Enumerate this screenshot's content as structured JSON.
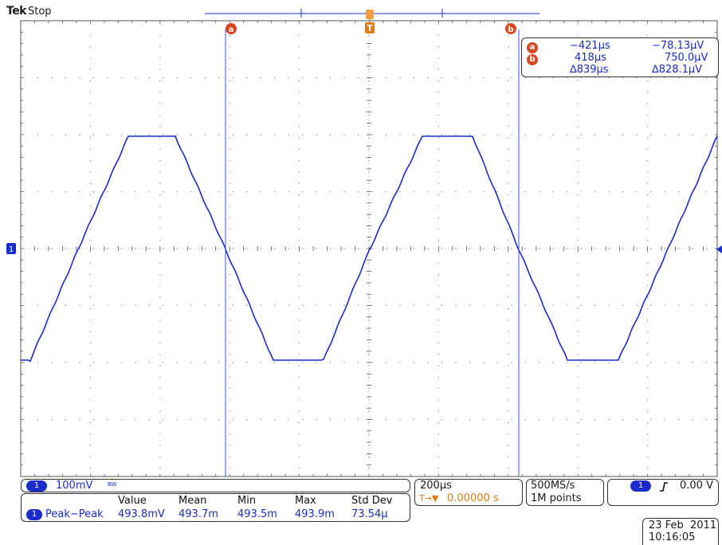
{
  "header": {
    "brand": "Tek",
    "status": "Stop"
  },
  "markers": {
    "cursor_a": "a",
    "cursor_b": "b",
    "trigger": "T",
    "channel": "1"
  },
  "cursor_readout": {
    "a": {
      "label": "a",
      "time": "−421µs",
      "value": "−78.13µV"
    },
    "b": {
      "label": "b",
      "time": "418µs",
      "value": "750.0µV"
    },
    "delta": {
      "time": "∆839µs",
      "value": "∆828.1µV"
    }
  },
  "channel": {
    "number": "1",
    "scale": "100mV",
    "bw_icon": "BW"
  },
  "measurements": {
    "headers": [
      "Value",
      "Mean",
      "Min",
      "Max",
      "Std Dev"
    ],
    "row": {
      "channel": "1",
      "name": "Peak−Peak",
      "values": [
        "493.8mV",
        "493.7m",
        "493.5m",
        "493.9m",
        "73.54µ"
      ]
    }
  },
  "timebase": {
    "scale": "200µs",
    "trigger_position": "0.00000 s",
    "trigger_icon": "T→▼"
  },
  "acquisition": {
    "rate": "500MS/s",
    "points": "1M points"
  },
  "trigger": {
    "channel": "1",
    "slope_icon": "rising-edge",
    "level": "0.00 V"
  },
  "datetime": {
    "date": "23 Feb  2011",
    "time": "10:16:05"
  },
  "colors": {
    "trace": "#1a2ccc",
    "cursor": "#d9471f",
    "trigger": "#e07c10",
    "grid": "#7a7a7a"
  }
}
